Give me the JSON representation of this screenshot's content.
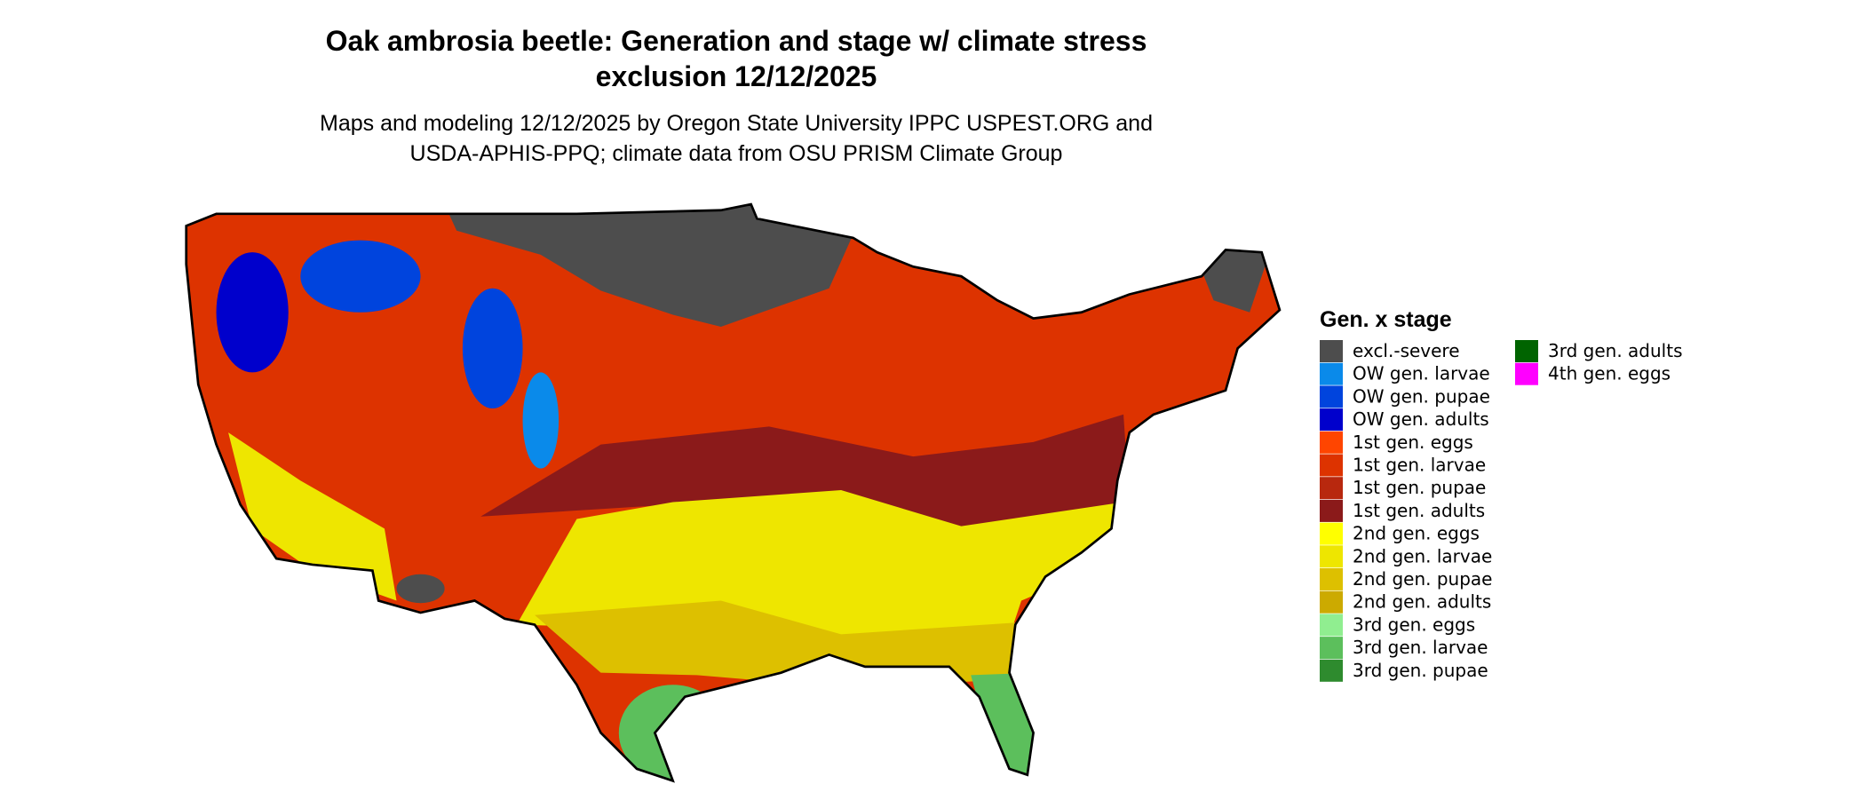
{
  "title": [
    "Oak ambrosia beetle: Generation and stage w/ climate stress",
    "exclusion 12/12/2025"
  ],
  "subtitle": [
    "Maps and modeling 12/12/2025 by Oregon State University IPPC USPEST.ORG and",
    "USDA-APHIS-PPQ; climate data from OSU PRISM Climate Group"
  ],
  "legend": {
    "title": "Gen. x stage",
    "items": [
      {
        "label": "excl.-severe",
        "color": "#4d4d4d"
      },
      {
        "label": "OW gen. larvae",
        "color": "#0a8aea"
      },
      {
        "label": "OW gen. pupae",
        "color": "#0044dd"
      },
      {
        "label": "OW gen. adults",
        "color": "#0000cc"
      },
      {
        "label": "1st gen. eggs",
        "color": "#ff4500"
      },
      {
        "label": "1st gen. larvae",
        "color": "#dd3300"
      },
      {
        "label": "1st gen. pupae",
        "color": "#b8280e"
      },
      {
        "label": "1st gen. adults",
        "color": "#8b1a1a"
      },
      {
        "label": "2nd gen. eggs",
        "color": "#ffff00"
      },
      {
        "label": "2nd gen. larvae",
        "color": "#eee600"
      },
      {
        "label": "2nd gen. pupae",
        "color": "#ddc000"
      },
      {
        "label": "2nd gen. adults",
        "color": "#ccaa00"
      },
      {
        "label": "3rd gen. eggs",
        "color": "#90ee90"
      },
      {
        "label": "3rd gen. larvae",
        "color": "#5cbf5c"
      },
      {
        "label": "3rd gen. pupae",
        "color": "#2e8b2e"
      },
      {
        "label": "3rd gen. adults",
        "color": "#006400"
      },
      {
        "label": "4th gen. eggs",
        "color": "#ff00ff"
      }
    ]
  }
}
